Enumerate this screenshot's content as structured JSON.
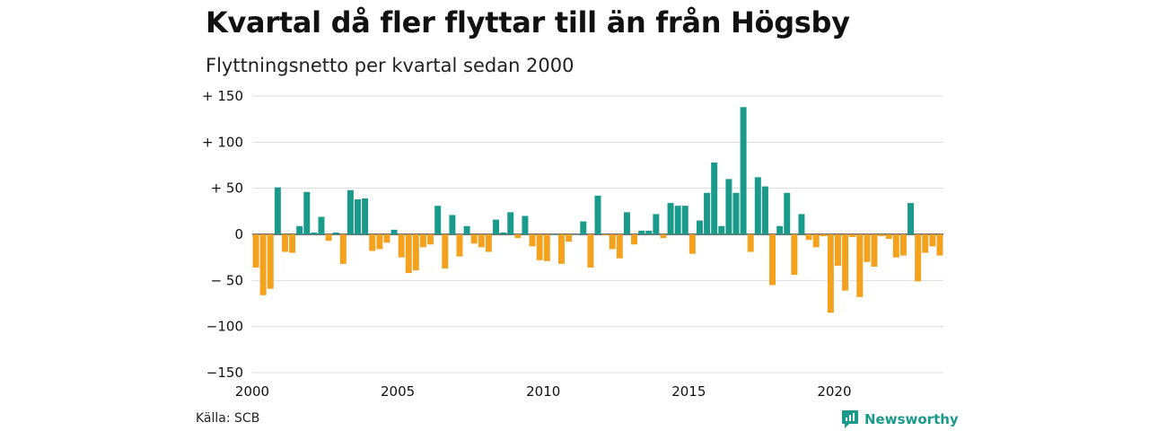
{
  "title": "Kvartal då fler flyttar till än från Högsby",
  "subtitle": "Flyttningsnetto per kvartal sedan 2000",
  "source": "Källa: SCB",
  "brand": "Newsworthy",
  "colors": {
    "positive": "#1a9a8a",
    "negative": "#f4a11d",
    "grid": "#dddddd",
    "axis": "#222222",
    "brand": "#1a9a8a"
  },
  "chart_data": {
    "type": "bar",
    "title": "Kvartal då fler flyttar till än från Högsby",
    "subtitle": "Flyttningsnetto per kvartal sedan 2000",
    "xlabel": "",
    "ylabel": "",
    "x_start": 2000,
    "periods_per_year": 4,
    "xlim": [
      2000,
      2023.75
    ],
    "ylim": [
      -150,
      150
    ],
    "grid": true,
    "y_ticks": [
      {
        "value": 150,
        "label": "+ 150"
      },
      {
        "value": 100,
        "label": "+ 100"
      },
      {
        "value": 50,
        "label": "+  50"
      },
      {
        "value": 0,
        "label": "0"
      },
      {
        "value": -50,
        "label": "− 50"
      },
      {
        "value": -100,
        "label": "−100"
      },
      {
        "value": -150,
        "label": "−150"
      }
    ],
    "x_ticks": [
      {
        "value": 2000,
        "label": "2000"
      },
      {
        "value": 2005,
        "label": "2005"
      },
      {
        "value": 2010,
        "label": "2010"
      },
      {
        "value": 2015,
        "label": "2015"
      },
      {
        "value": 2020,
        "label": "2020"
      }
    ],
    "values": [
      -36,
      -66,
      -59,
      51,
      -19,
      -20,
      9,
      46,
      2,
      19,
      -7,
      2,
      -32,
      48,
      38,
      39,
      -18,
      -16,
      -9,
      5,
      -25,
      -42,
      -39,
      -14,
      -11,
      31,
      -37,
      21,
      -24,
      9,
      -10,
      -14,
      -19,
      16,
      2,
      24,
      -4,
      20,
      -13,
      -28,
      -29,
      0,
      -32,
      -8,
      0,
      14,
      -36,
      42,
      -1,
      -16,
      -26,
      24,
      -11,
      4,
      4,
      22,
      -4,
      34,
      31,
      31,
      -21,
      15,
      45,
      78,
      9,
      60,
      45,
      138,
      -19,
      62,
      52,
      -55,
      9,
      45,
      -44,
      22,
      -6,
      -14,
      -2,
      -85,
      -34,
      -61,
      -3,
      -68,
      -30,
      -35,
      -2,
      -5,
      -25,
      -23,
      34,
      -51,
      -20,
      -13,
      -23
    ]
  }
}
